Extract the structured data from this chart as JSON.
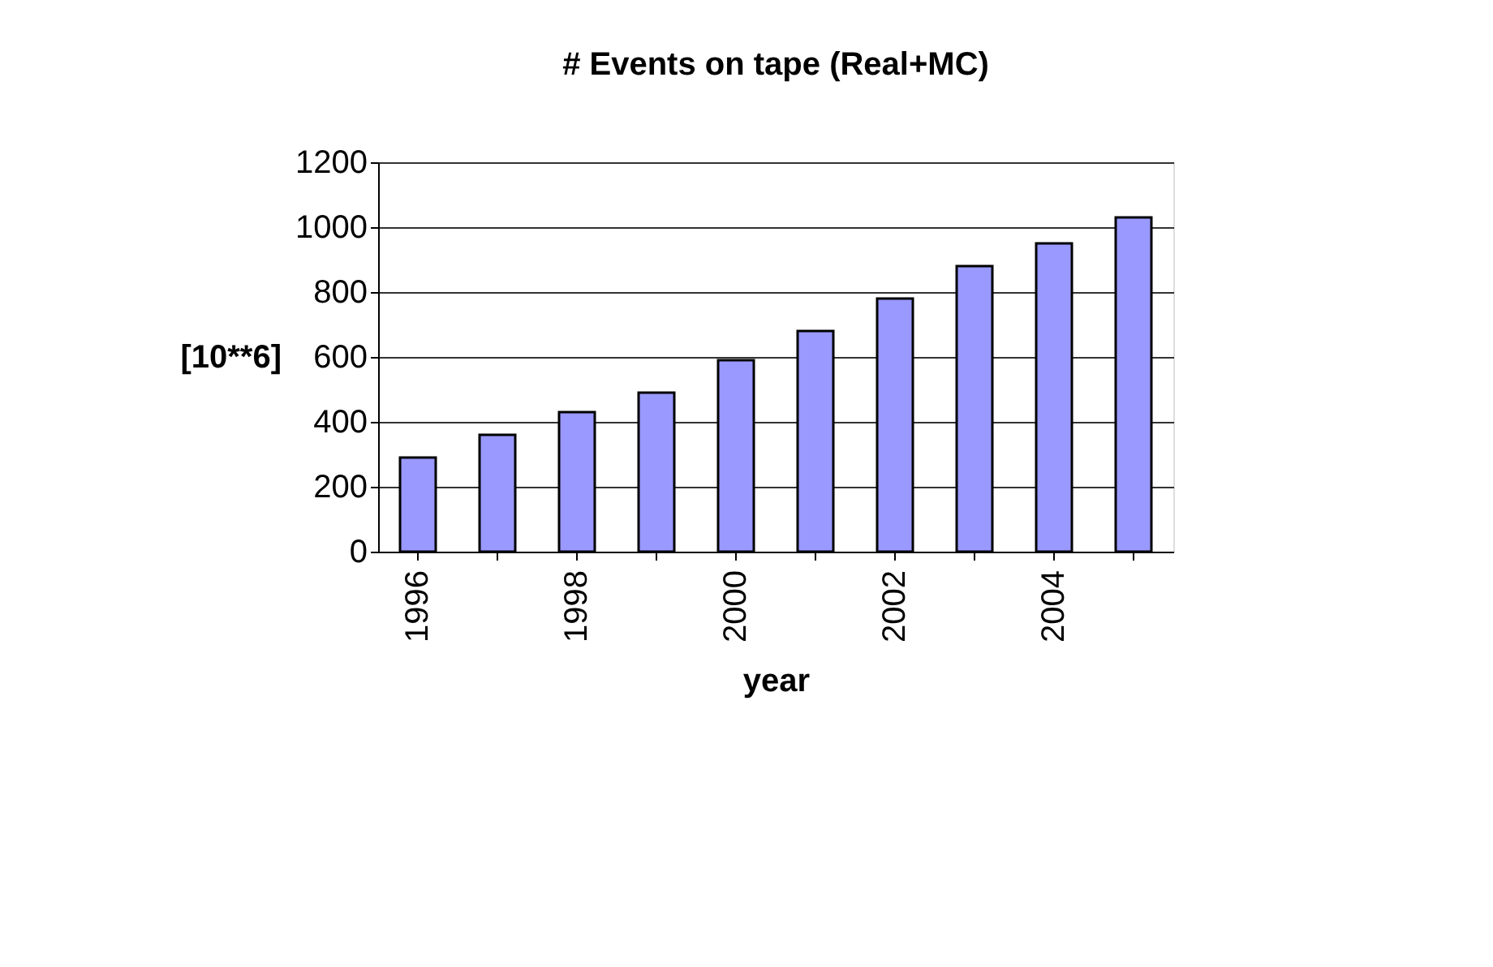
{
  "chart_data": {
    "type": "bar",
    "title": "# Events on tape (Real+MC)",
    "xlabel": "year",
    "ylabel": "[10**6]",
    "categories": [
      "1996",
      null,
      "1998",
      null,
      "2000",
      null,
      "2002",
      null,
      "2004",
      null
    ],
    "values": [
      290,
      360,
      430,
      490,
      590,
      680,
      780,
      880,
      950,
      1030
    ],
    "color": "#9999ff",
    "ylim": [
      0,
      1200
    ],
    "yticks": [
      0,
      200,
      400,
      600,
      800,
      1000,
      1200
    ],
    "grid": "y"
  }
}
